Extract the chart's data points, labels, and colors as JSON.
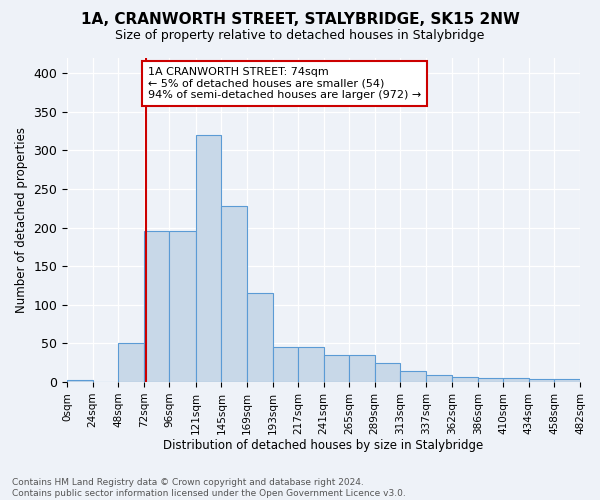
{
  "title": "1A, CRANWORTH STREET, STALYBRIDGE, SK15 2NW",
  "subtitle": "Size of property relative to detached houses in Stalybridge",
  "xlabel": "Distribution of detached houses by size in Stalybridge",
  "ylabel": "Number of detached properties",
  "annotation_line1": "1A CRANWORTH STREET: 74sqm",
  "annotation_line2": "← 5% of detached houses are smaller (54)",
  "annotation_line3": "94% of semi-detached houses are larger (972) →",
  "property_size_sqm": 74,
  "bin_edges": [
    0,
    24,
    48,
    72,
    96,
    121,
    145,
    169,
    193,
    217,
    241,
    265,
    289,
    313,
    337,
    362,
    386,
    410,
    434,
    458,
    482
  ],
  "bar_heights": [
    3,
    0,
    51,
    195,
    195,
    320,
    228,
    115,
    46,
    46,
    35,
    35,
    25,
    14,
    9,
    6,
    5,
    5,
    4,
    4
  ],
  "bar_color": "#c8d8e8",
  "bar_edge_color": "#5b9bd5",
  "vline_color": "#cc0000",
  "vline_x": 74,
  "ylim": [
    0,
    420
  ],
  "yticks": [
    0,
    50,
    100,
    150,
    200,
    250,
    300,
    350,
    400
  ],
  "footer_line1": "Contains HM Land Registry data © Crown copyright and database right 2024.",
  "footer_line2": "Contains public sector information licensed under the Open Government Licence v3.0.",
  "background_color": "#eef2f8",
  "plot_background_color": "#eef2f8"
}
